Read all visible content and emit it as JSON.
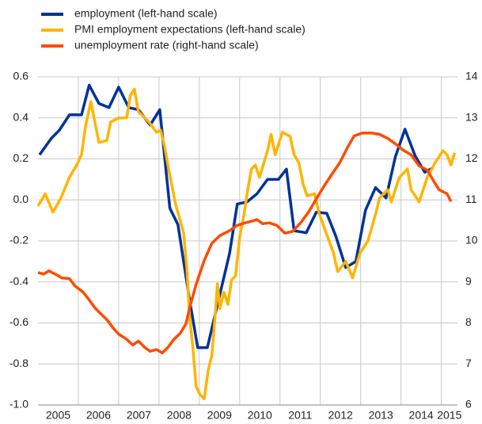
{
  "chart_data": {
    "type": "line",
    "xlim": [
      2005,
      2015.4
    ],
    "xticks": [
      2005,
      2006,
      2007,
      2008,
      2009,
      2010,
      2011,
      2012,
      2013,
      2014,
      2015
    ],
    "ylim": [
      -1,
      0.6
    ],
    "yticks": [
      0.6,
      0.4,
      0.2,
      {
        "value": 0,
        "label": "0.0"
      },
      -0.2,
      -0.4,
      -0.6,
      -0.8,
      {
        "value": -1,
        "label": "-1.0"
      }
    ],
    "y2lim": [
      6,
      14
    ],
    "y2ticks": [
      14,
      13,
      12,
      11,
      10,
      9,
      8,
      7,
      6
    ],
    "grid": true,
    "series": [
      {
        "name": "employment (left-hand scale)",
        "color": "#003299",
        "x": [
          2005.04,
          2005.33,
          2005.53,
          2005.78,
          2006.08,
          2006.27,
          2006.51,
          2006.76,
          2007.0,
          2007.25,
          2007.49,
          2007.78,
          2008.02,
          2008.27,
          2008.47,
          2008.76,
          2008.96,
          2009.2,
          2009.45,
          2009.75,
          2009.94,
          2010.18,
          2010.43,
          2010.69,
          2010.96,
          2011.16,
          2011.35,
          2011.65,
          2011.9,
          2012.16,
          2012.39,
          2012.63,
          2012.88,
          2013.12,
          2013.37,
          2013.63,
          2013.86,
          2014.1,
          2014.35,
          2014.59,
          2014.78
        ],
        "values": [
          0.22,
          0.3,
          0.34,
          0.415,
          0.415,
          0.56,
          0.47,
          0.45,
          0.55,
          0.45,
          0.44,
          0.365,
          0.44,
          -0.04,
          -0.12,
          -0.49,
          -0.72,
          -0.72,
          -0.51,
          -0.26,
          -0.02,
          -0.01,
          0.03,
          0.1,
          0.1,
          0.15,
          -0.15,
          -0.16,
          -0.06,
          -0.065,
          -0.18,
          -0.33,
          -0.3,
          -0.05,
          0.06,
          0.01,
          0.21,
          0.345,
          0.215,
          0.135,
          0.155
        ]
      },
      {
        "name": "PMI employment expectations (left-hand scale)",
        "color": "#ffb400",
        "x": [
          2005.0,
          2005.18,
          2005.37,
          2005.57,
          2005.78,
          2005.96,
          2006.08,
          2006.18,
          2006.31,
          2006.51,
          2006.71,
          2006.8,
          2007.0,
          2007.2,
          2007.29,
          2007.39,
          2007.49,
          2007.75,
          2007.94,
          2008.04,
          2008.14,
          2008.24,
          2008.41,
          2008.61,
          2008.69,
          2008.76,
          2008.84,
          2008.92,
          2009.02,
          2009.12,
          2009.22,
          2009.31,
          2009.39,
          2009.45,
          2009.51,
          2009.61,
          2009.71,
          2009.8,
          2009.9,
          2010.0,
          2010.1,
          2010.2,
          2010.29,
          2010.39,
          2010.49,
          2010.69,
          2010.78,
          2010.88,
          2011.06,
          2011.25,
          2011.35,
          2011.47,
          2011.57,
          2011.67,
          2011.86,
          2011.96,
          2012.16,
          2012.33,
          2012.43,
          2012.63,
          2012.8,
          2012.98,
          2013.18,
          2013.37,
          2013.47,
          2013.67,
          2013.76,
          2013.96,
          2014.16,
          2014.25,
          2014.45,
          2014.65,
          2014.84,
          2015.04,
          2015.14,
          2015.24,
          2015.33
        ],
        "values": [
          -0.03,
          0.03,
          -0.06,
          0.01,
          0.11,
          0.17,
          0.22,
          0.36,
          0.48,
          0.28,
          0.29,
          0.38,
          0.4,
          0.4,
          0.51,
          0.54,
          0.43,
          0.38,
          0.33,
          0.34,
          0.26,
          0.15,
          -0.02,
          -0.16,
          -0.33,
          -0.57,
          -0.72,
          -0.91,
          -0.95,
          -0.97,
          -0.83,
          -0.76,
          -0.57,
          -0.41,
          -0.53,
          -0.45,
          -0.51,
          -0.39,
          -0.37,
          -0.18,
          -0.08,
          0.05,
          0.15,
          0.17,
          0.11,
          0.24,
          0.32,
          0.22,
          0.33,
          0.31,
          0.22,
          0.18,
          0.08,
          0.02,
          0.03,
          -0.06,
          -0.17,
          -0.26,
          -0.35,
          -0.3,
          -0.38,
          -0.26,
          -0.2,
          -0.07,
          0.01,
          0.05,
          -0.01,
          0.11,
          0.15,
          0.05,
          -0.01,
          0.11,
          0.18,
          0.24,
          0.22,
          0.17,
          0.23
        ]
      },
      {
        "name": "unemployment rate (right-hand scale)",
        "color": "#ff4b00",
        "axis": "y2",
        "x": [
          2005.0,
          2005.14,
          2005.27,
          2005.43,
          2005.59,
          2005.78,
          2005.92,
          2006.12,
          2006.27,
          2006.41,
          2006.57,
          2006.71,
          2006.86,
          2007.0,
          2007.2,
          2007.35,
          2007.49,
          2007.65,
          2007.78,
          2007.94,
          2008.08,
          2008.22,
          2008.37,
          2008.53,
          2008.67,
          2008.76,
          2008.92,
          2009.12,
          2009.31,
          2009.51,
          2009.75,
          2009.94,
          2010.14,
          2010.29,
          2010.43,
          2010.57,
          2010.73,
          2010.92,
          2011.12,
          2011.31,
          2011.51,
          2011.71,
          2011.9,
          2012.1,
          2012.29,
          2012.49,
          2012.69,
          2012.84,
          2013.04,
          2013.27,
          2013.47,
          2013.67,
          2013.86,
          2014.06,
          2014.25,
          2014.45,
          2014.65,
          2014.8,
          2014.94,
          2015.14,
          2015.24
        ],
        "values": [
          9.23,
          9.19,
          9.27,
          9.19,
          9.1,
          9.08,
          8.9,
          8.75,
          8.56,
          8.37,
          8.21,
          8.08,
          7.88,
          7.73,
          7.6,
          7.46,
          7.56,
          7.4,
          7.31,
          7.35,
          7.27,
          7.4,
          7.6,
          7.75,
          7.98,
          8.37,
          8.94,
          9.52,
          9.94,
          10.13,
          10.25,
          10.38,
          10.44,
          10.48,
          10.52,
          10.42,
          10.44,
          10.38,
          10.19,
          10.23,
          10.44,
          10.71,
          11.02,
          11.35,
          11.63,
          11.92,
          12.31,
          12.56,
          12.63,
          12.63,
          12.6,
          12.5,
          12.37,
          12.21,
          12.1,
          11.83,
          11.73,
          11.48,
          11.25,
          11.15,
          10.96
        ]
      }
    ]
  }
}
